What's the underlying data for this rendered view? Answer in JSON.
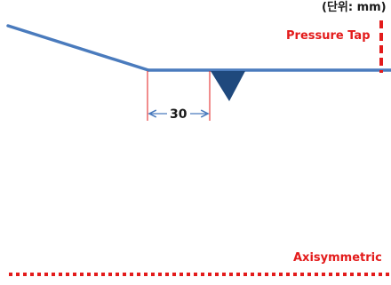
{
  "labels": {
    "unit": "(단위: mm)",
    "pressure_tap": "Pressure Tap",
    "dimension": "30",
    "axis": "Axisymmetric"
  },
  "colors": {
    "wall": "#4a7bbd",
    "marker": "#1f497d",
    "annotation": "#e31b1b",
    "text": "#1a1a1a"
  }
}
